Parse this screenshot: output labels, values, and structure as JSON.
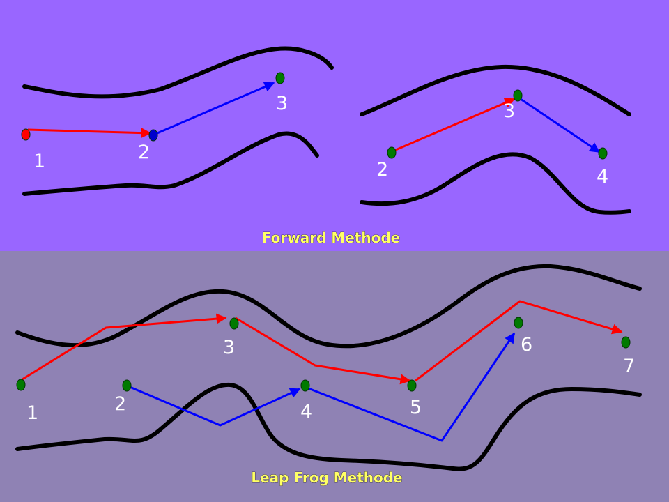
{
  "colors": {
    "top_background": "#9966ff",
    "bottom_background": "#8f82b4",
    "red_path": "#ff0000",
    "blue_path": "#0000ff",
    "node_green": "#007a00",
    "node_red": "#ff0000",
    "node_blue": "#0000cc",
    "caption_text": "#ffff66"
  },
  "forward": {
    "caption": "Forward Methode",
    "left": {
      "label_1": "1",
      "label_2": "2",
      "label_3": "3"
    },
    "right": {
      "label_2": "2",
      "label_3": "3",
      "label_4": "4"
    }
  },
  "leapfrog": {
    "caption": "Leap Frog Methode",
    "labels": {
      "n1": "1",
      "n2": "2",
      "n3": "3",
      "n4": "4",
      "n5": "5",
      "n6": "6",
      "n7": "7"
    }
  }
}
